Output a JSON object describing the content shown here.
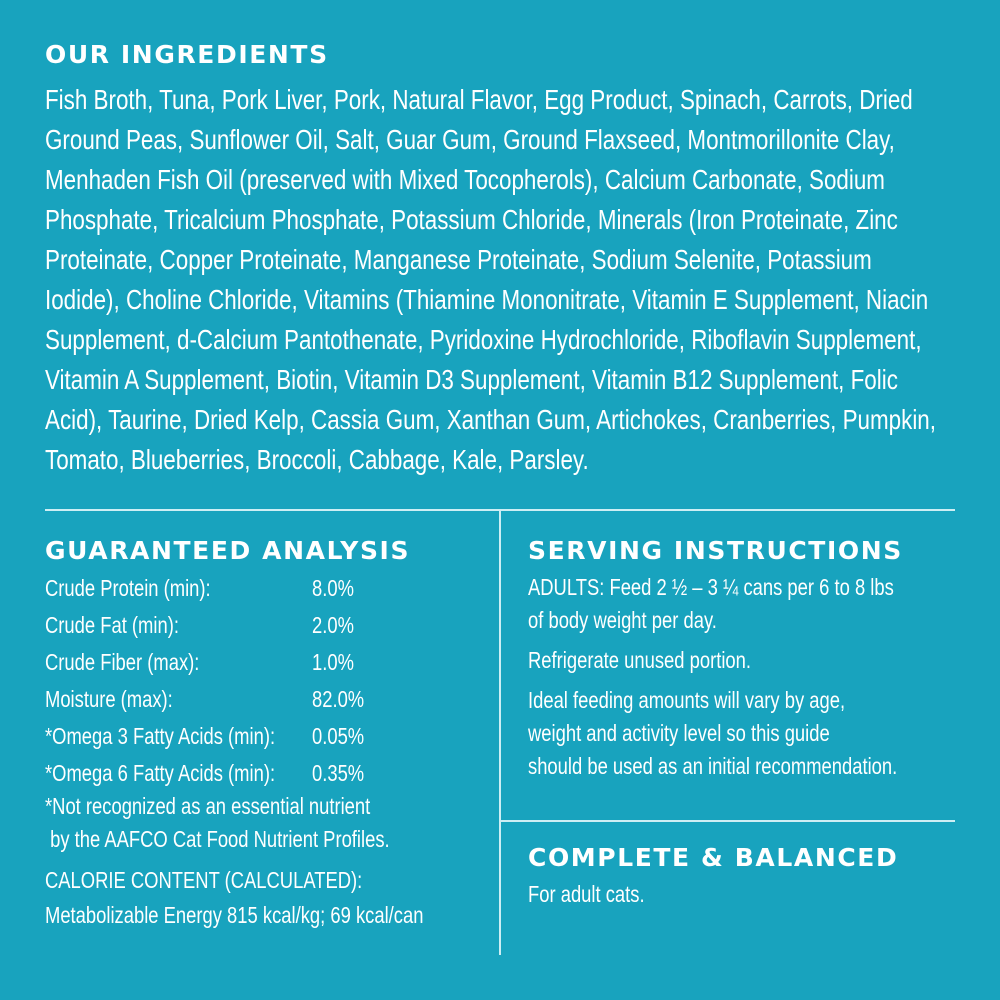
{
  "ingredients": {
    "title": "OUR INGREDIENTS",
    "lines": [
      "Fish Broth, Tuna, Pork Liver, Pork, Natural Flavor, Egg Product, Spinach, Carrots, Dried",
      "Ground Peas, Sunflower Oil, Salt, Guar Gum, Ground Flaxseed, Montmorillonite Clay,",
      "Menhaden Fish Oil (preserved with Mixed Tocopherols), Calcium Carbonate, Sodium",
      "Phosphate, Tricalcium Phosphate, Potassium Chloride, Minerals (Iron Proteinate, Zinc",
      "Proteinate, Copper Proteinate, Manganese Proteinate, Sodium Selenite, Potassium",
      "Iodide), Choline Chloride, Vitamins (Thiamine Mononitrate, Vitamin E Supplement, Niacin",
      "Supplement, d-Calcium Pantothenate, Pyridoxine Hydrochloride, Riboflavin Supplement,",
      "Vitamin A Supplement, Biotin, Vitamin D3 Supplement, Vitamin B12 Supplement, Folic",
      "Acid), Taurine, Dried Kelp, Cassia Gum, Xanthan Gum, Artichokes, Cranberries, Pumpkin,",
      "Tomato, Blueberries, Broccoli, Cabbage, Kale, Parsley."
    ]
  },
  "analysis": {
    "title": "GUARANTEED ANALYSIS",
    "rows": [
      {
        "label": "Crude Protein (min):",
        "value": "8.0%"
      },
      {
        "label": "Crude Fat (min):",
        "value": "2.0%"
      },
      {
        "label": "Crude Fiber (max):",
        "value": "1.0%"
      },
      {
        "label": "Moisture (max):",
        "value": "82.0%"
      },
      {
        "label": "*Omega 3 Fatty Acids (min):",
        "value": "0.05%"
      },
      {
        "label": "*Omega 6 Fatty Acids (min):",
        "value": "0.35%"
      }
    ],
    "footnote_1": "*Not recognized as an essential nutrient",
    "footnote_2": " by the AAFCO Cat Food Nutrient Profiles.",
    "calorie_title": "CALORIE CONTENT (CALCULATED):",
    "calorie_value": "Metabolizable Energy 815 kcal/kg; 69 kcal/can"
  },
  "serving": {
    "title": "SERVING INSTRUCTIONS",
    "line_1": "ADULTS: Feed 2 ½ – 3 ¼ cans per 6 to 8 lbs",
    "line_2": "of body weight per day.",
    "line_3": "Refrigerate unused portion.",
    "line_4": "Ideal feeding amounts will vary by age,",
    "line_5": "weight and activity level so this guide",
    "line_6": "should be used as an initial recommendation."
  },
  "complete": {
    "title": "COMPLETE & BALANCED",
    "text": "For adult cats."
  },
  "colors": {
    "background": "#18a3be",
    "text": "#ffffff"
  }
}
